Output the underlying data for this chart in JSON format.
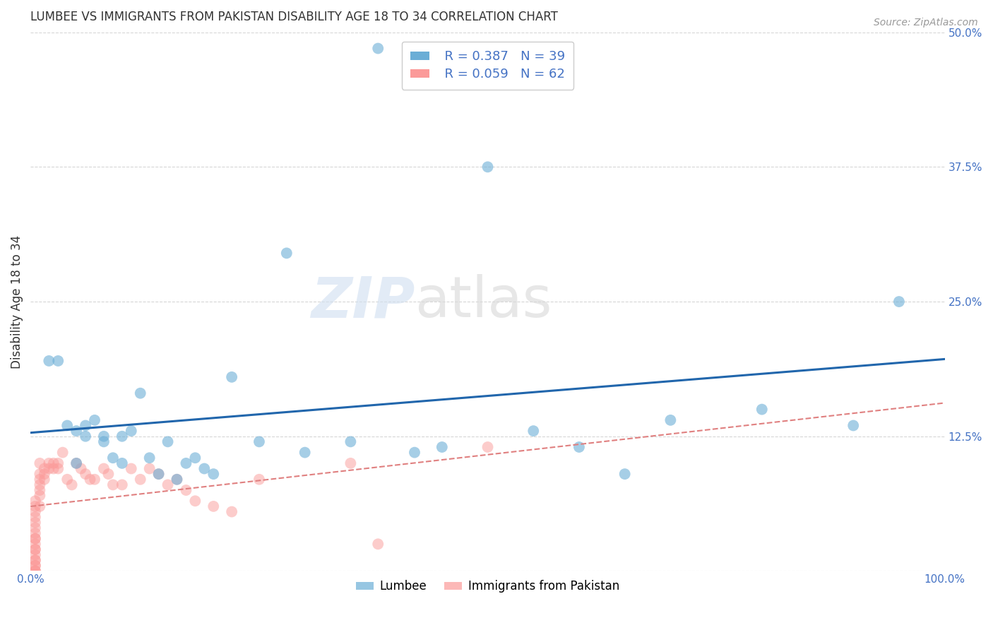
{
  "title": "LUMBEE VS IMMIGRANTS FROM PAKISTAN DISABILITY AGE 18 TO 34 CORRELATION CHART",
  "source": "Source: ZipAtlas.com",
  "ylabel": "Disability Age 18 to 34",
  "xlim": [
    0.0,
    1.0
  ],
  "ylim": [
    0.0,
    0.5
  ],
  "xticks": [
    0.0,
    0.25,
    0.5,
    0.75,
    1.0
  ],
  "xticklabels": [
    "0.0%",
    "",
    "",
    "",
    "100.0%"
  ],
  "yticks": [
    0.0,
    0.125,
    0.25,
    0.375,
    0.5
  ],
  "yticklabels": [
    "",
    "12.5%",
    "25.0%",
    "37.5%",
    "50.0%"
  ],
  "lumbee_color": "#6baed6",
  "pakistan_color": "#fb9a99",
  "lumbee_line_color": "#2166ac",
  "pakistan_line_color": "#e08080",
  "R_lumbee": 0.387,
  "N_lumbee": 39,
  "R_pakistan": 0.059,
  "N_pakistan": 62,
  "watermark_zip": "ZIP",
  "watermark_atlas": "atlas",
  "lumbee_x": [
    0.02,
    0.03,
    0.04,
    0.05,
    0.05,
    0.06,
    0.06,
    0.07,
    0.08,
    0.08,
    0.09,
    0.1,
    0.1,
    0.11,
    0.12,
    0.13,
    0.14,
    0.15,
    0.16,
    0.17,
    0.18,
    0.19,
    0.2,
    0.22,
    0.25,
    0.28,
    0.3,
    0.35,
    0.38,
    0.42,
    0.45,
    0.5,
    0.55,
    0.6,
    0.65,
    0.7,
    0.8,
    0.9,
    0.95
  ],
  "lumbee_y": [
    0.195,
    0.195,
    0.135,
    0.13,
    0.1,
    0.135,
    0.125,
    0.14,
    0.125,
    0.12,
    0.105,
    0.125,
    0.1,
    0.13,
    0.165,
    0.105,
    0.09,
    0.12,
    0.085,
    0.1,
    0.105,
    0.095,
    0.09,
    0.18,
    0.12,
    0.295,
    0.11,
    0.12,
    0.485,
    0.11,
    0.115,
    0.375,
    0.13,
    0.115,
    0.09,
    0.14,
    0.15,
    0.135,
    0.25
  ],
  "pakistan_x": [
    0.005,
    0.005,
    0.005,
    0.005,
    0.005,
    0.005,
    0.005,
    0.005,
    0.005,
    0.005,
    0.005,
    0.005,
    0.005,
    0.005,
    0.005,
    0.005,
    0.005,
    0.005,
    0.005,
    0.005,
    0.01,
    0.01,
    0.01,
    0.01,
    0.01,
    0.01,
    0.01,
    0.015,
    0.015,
    0.015,
    0.02,
    0.02,
    0.025,
    0.025,
    0.03,
    0.03,
    0.035,
    0.04,
    0.045,
    0.05,
    0.055,
    0.06,
    0.065,
    0.07,
    0.08,
    0.085,
    0.09,
    0.1,
    0.11,
    0.12,
    0.13,
    0.14,
    0.15,
    0.16,
    0.17,
    0.18,
    0.2,
    0.22,
    0.25,
    0.35,
    0.38,
    0.5
  ],
  "pakistan_y": [
    0.0,
    0.0,
    0.0,
    0.005,
    0.005,
    0.01,
    0.01,
    0.015,
    0.02,
    0.02,
    0.025,
    0.03,
    0.03,
    0.035,
    0.04,
    0.045,
    0.05,
    0.055,
    0.06,
    0.065,
    0.06,
    0.07,
    0.075,
    0.08,
    0.085,
    0.09,
    0.1,
    0.085,
    0.09,
    0.095,
    0.095,
    0.1,
    0.095,
    0.1,
    0.095,
    0.1,
    0.11,
    0.085,
    0.08,
    0.1,
    0.095,
    0.09,
    0.085,
    0.085,
    0.095,
    0.09,
    0.08,
    0.08,
    0.095,
    0.085,
    0.095,
    0.09,
    0.08,
    0.085,
    0.075,
    0.065,
    0.06,
    0.055,
    0.085,
    0.1,
    0.025,
    0.115
  ],
  "background_color": "#ffffff",
  "grid_color": "#cccccc",
  "tick_label_color": "#4472c4",
  "legend_label_color": "#4472c4"
}
